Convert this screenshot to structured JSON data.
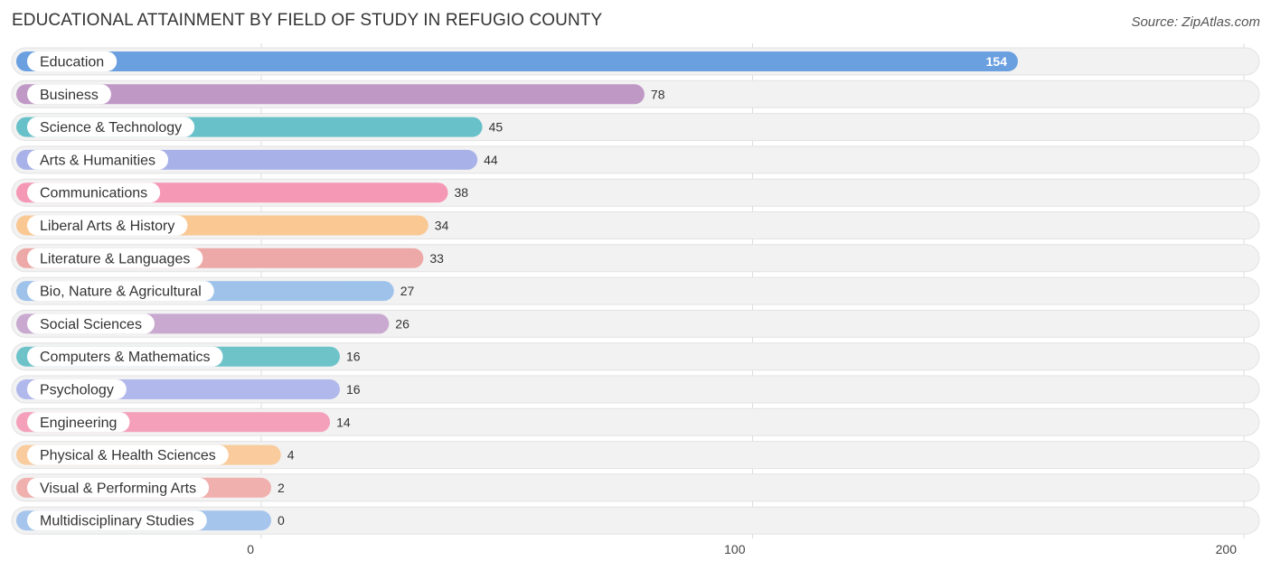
{
  "header": {
    "title": "EDUCATIONAL ATTAINMENT BY FIELD OF STUDY IN REFUGIO COUNTY",
    "source": "Source: ZipAtlas.com"
  },
  "chart_data": {
    "type": "bar",
    "orientation": "horizontal",
    "title": "EDUCATIONAL ATTAINMENT BY FIELD OF STUDY IN REFUGIO COUNTY",
    "xlabel": "",
    "ylabel": "",
    "xlim": [
      0,
      200
    ],
    "xticks": [
      0,
      100,
      200
    ],
    "grid": true,
    "categories": [
      "Education",
      "Business",
      "Science & Technology",
      "Arts & Humanities",
      "Communications",
      "Liberal Arts & History",
      "Literature & Languages",
      "Bio, Nature & Agricultural",
      "Social Sciences",
      "Computers & Mathematics",
      "Psychology",
      "Engineering",
      "Physical & Health Sciences",
      "Visual & Performing Arts",
      "Multidisciplinary Studies"
    ],
    "values": [
      154,
      78,
      45,
      44,
      38,
      34,
      33,
      27,
      26,
      16,
      16,
      14,
      4,
      2,
      0
    ],
    "colors": [
      "#6a9fe0",
      "#bf98c6",
      "#68c1c9",
      "#a8b2e8",
      "#f598b6",
      "#f9c893",
      "#eda9a8",
      "#9fc2ea",
      "#c9a9cf",
      "#6ec3c9",
      "#b1b8ec",
      "#f5a0bb",
      "#f9cb9d",
      "#f0b0ae",
      "#a6c5ec"
    ]
  }
}
